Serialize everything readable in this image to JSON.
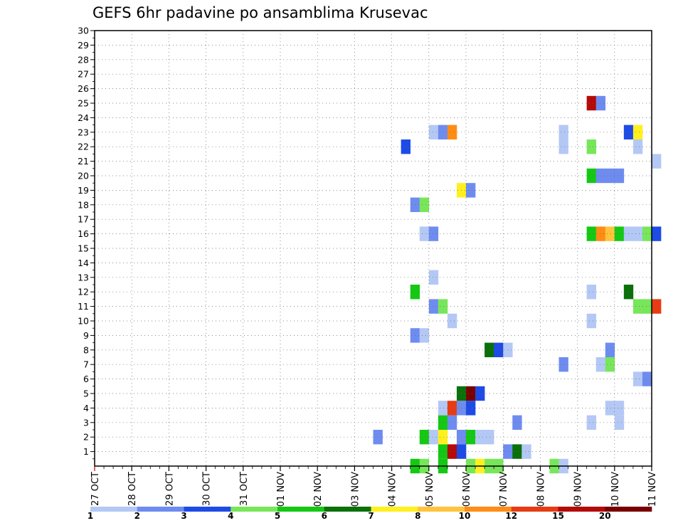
{
  "chart_data": {
    "type": "heatmap",
    "title": "GEFS 6hr padavine po ansamblima Krusevac",
    "xlabel": "",
    "ylabel": "",
    "x_tick_labels": [
      "27 OCT",
      "28 OCT",
      "29 OCT",
      "30 OCT",
      "31 OCT",
      "01 NOV",
      "02 NOV",
      "03 NOV",
      "04 NOV",
      "05 NOV",
      "06 NOV",
      "07 NOV",
      "08 NOV",
      "09 NOV",
      "10 NOV",
      "11 NOV"
    ],
    "y_tick_labels": [
      "1",
      "2",
      "3",
      "4",
      "5",
      "6",
      "7",
      "8",
      "9",
      "10",
      "11",
      "12",
      "13",
      "14",
      "15",
      "16",
      "17",
      "18",
      "19",
      "20",
      "21",
      "22",
      "23",
      "24",
      "25",
      "26",
      "27",
      "28",
      "29",
      "30"
    ],
    "ylim": [
      0,
      30
    ],
    "x_unit": "6-hour steps from 27 OCT 00Z",
    "grid": true,
    "legend": {
      "placement": "bottom",
      "labels": [
        "1",
        "2",
        "3",
        "4",
        "5",
        "6",
        "7",
        "8",
        "10",
        "12",
        "15",
        "20"
      ],
      "colors": [
        "#b4c8f5",
        "#6e8cf0",
        "#1e4be6",
        "#78e65a",
        "#14c814",
        "#0a700a",
        "#fff01e",
        "#ffc33c",
        "#ff8c14",
        "#e63c14",
        "#b40a0a",
        "#780000"
      ]
    },
    "cells": [
      {
        "x": 34,
        "y": 0,
        "c": 4
      },
      {
        "x": 35,
        "y": 0,
        "c": 3
      },
      {
        "x": 37,
        "y": 0,
        "c": 4
      },
      {
        "x": 37,
        "y": 1,
        "c": 4
      },
      {
        "x": 38,
        "y": 1,
        "c": 10
      },
      {
        "x": 39,
        "y": 1,
        "c": 2
      },
      {
        "x": 40,
        "y": 0,
        "c": 3
      },
      {
        "x": 41,
        "y": 0,
        "c": 6
      },
      {
        "x": 42,
        "y": 0,
        "c": 3
      },
      {
        "x": 43,
        "y": 0,
        "c": 3
      },
      {
        "x": 44,
        "y": 1,
        "c": 1
      },
      {
        "x": 45,
        "y": 1,
        "c": 5
      },
      {
        "x": 46,
        "y": 1,
        "c": 0
      },
      {
        "x": 49,
        "y": 0,
        "c": 3
      },
      {
        "x": 50,
        "y": 0,
        "c": 0
      },
      {
        "x": 30,
        "y": 2,
        "c": 1
      },
      {
        "x": 35,
        "y": 2,
        "c": 4
      },
      {
        "x": 36,
        "y": 2,
        "c": 0
      },
      {
        "x": 37,
        "y": 2,
        "c": 6
      },
      {
        "x": 39,
        "y": 2,
        "c": 1
      },
      {
        "x": 40,
        "y": 2,
        "c": 4
      },
      {
        "x": 41,
        "y": 2,
        "c": 0
      },
      {
        "x": 42,
        "y": 2,
        "c": 0
      },
      {
        "x": 37,
        "y": 3,
        "c": 4
      },
      {
        "x": 38,
        "y": 3,
        "c": 1
      },
      {
        "x": 45,
        "y": 3,
        "c": 1
      },
      {
        "x": 53,
        "y": 3,
        "c": 0
      },
      {
        "x": 56,
        "y": 3,
        "c": 0
      },
      {
        "x": 37,
        "y": 4,
        "c": 0
      },
      {
        "x": 38,
        "y": 4,
        "c": 9
      },
      {
        "x": 39,
        "y": 4,
        "c": 1
      },
      {
        "x": 40,
        "y": 4,
        "c": 2
      },
      {
        "x": 55,
        "y": 4,
        "c": 0
      },
      {
        "x": 56,
        "y": 4,
        "c": 0
      },
      {
        "x": 39,
        "y": 5,
        "c": 5
      },
      {
        "x": 40,
        "y": 5,
        "c": 11
      },
      {
        "x": 41,
        "y": 5,
        "c": 2
      },
      {
        "x": 58,
        "y": 6,
        "c": 0
      },
      {
        "x": 59,
        "y": 6,
        "c": 1
      },
      {
        "x": 50,
        "y": 7,
        "c": 1
      },
      {
        "x": 54,
        "y": 7,
        "c": 0
      },
      {
        "x": 55,
        "y": 7,
        "c": 3
      },
      {
        "x": 42,
        "y": 8,
        "c": 5
      },
      {
        "x": 43,
        "y": 8,
        "c": 2
      },
      {
        "x": 44,
        "y": 8,
        "c": 0
      },
      {
        "x": 55,
        "y": 8,
        "c": 1
      },
      {
        "x": 34,
        "y": 9,
        "c": 1
      },
      {
        "x": 35,
        "y": 9,
        "c": 0
      },
      {
        "x": 38,
        "y": 10,
        "c": 0
      },
      {
        "x": 53,
        "y": 10,
        "c": 0
      },
      {
        "x": 36,
        "y": 11,
        "c": 1
      },
      {
        "x": 37,
        "y": 11,
        "c": 3
      },
      {
        "x": 58,
        "y": 11,
        "c": 3
      },
      {
        "x": 59,
        "y": 11,
        "c": 3
      },
      {
        "x": 60,
        "y": 11,
        "c": 9
      },
      {
        "x": 34,
        "y": 12,
        "c": 4
      },
      {
        "x": 53,
        "y": 12,
        "c": 0
      },
      {
        "x": 57,
        "y": 12,
        "c": 5
      },
      {
        "x": 36,
        "y": 13,
        "c": 0
      },
      {
        "x": 35,
        "y": 16,
        "c": 0
      },
      {
        "x": 36,
        "y": 16,
        "c": 1
      },
      {
        "x": 53,
        "y": 16,
        "c": 4
      },
      {
        "x": 54,
        "y": 16,
        "c": 8
      },
      {
        "x": 55,
        "y": 16,
        "c": 7
      },
      {
        "x": 56,
        "y": 16,
        "c": 4
      },
      {
        "x": 57,
        "y": 16,
        "c": 0
      },
      {
        "x": 58,
        "y": 16,
        "c": 0
      },
      {
        "x": 59,
        "y": 16,
        "c": 3
      },
      {
        "x": 60,
        "y": 16,
        "c": 2
      },
      {
        "x": 34,
        "y": 18,
        "c": 1
      },
      {
        "x": 35,
        "y": 18,
        "c": 3
      },
      {
        "x": 39,
        "y": 19,
        "c": 6
      },
      {
        "x": 40,
        "y": 19,
        "c": 1
      },
      {
        "x": 53,
        "y": 20,
        "c": 4
      },
      {
        "x": 54,
        "y": 20,
        "c": 1
      },
      {
        "x": 55,
        "y": 20,
        "c": 1
      },
      {
        "x": 56,
        "y": 20,
        "c": 1
      },
      {
        "x": 60,
        "y": 21,
        "c": 0
      },
      {
        "x": 33,
        "y": 22,
        "c": 2
      },
      {
        "x": 50,
        "y": 22,
        "c": 0
      },
      {
        "x": 53,
        "y": 22,
        "c": 3
      },
      {
        "x": 58,
        "y": 22,
        "c": 0
      },
      {
        "x": 36,
        "y": 23,
        "c": 0
      },
      {
        "x": 37,
        "y": 23,
        "c": 1
      },
      {
        "x": 38,
        "y": 23,
        "c": 8
      },
      {
        "x": 50,
        "y": 23,
        "c": 0
      },
      {
        "x": 57,
        "y": 23,
        "c": 2
      },
      {
        "x": 58,
        "y": 23,
        "c": 6
      },
      {
        "x": 53,
        "y": 25,
        "c": 10
      },
      {
        "x": 54,
        "y": 25,
        "c": 1
      }
    ]
  }
}
